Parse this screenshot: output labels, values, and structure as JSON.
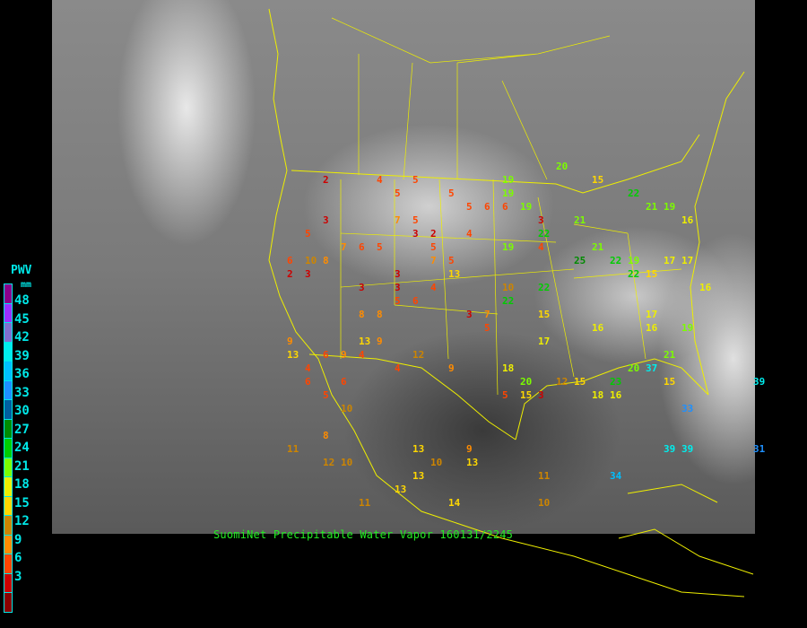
{
  "caption": "SuomiNet Precipitable Water Vapor 160131/2245",
  "legend": {
    "title": "PWV",
    "unit": "mm",
    "labels": [
      "48",
      "45",
      "42",
      "39",
      "36",
      "33",
      "30",
      "27",
      "24",
      "21",
      "18",
      "15",
      "12",
      "9",
      "6",
      "3"
    ],
    "colors": [
      "#8b008b",
      "#9b30ff",
      "#8070d0",
      "#00eeee",
      "#00bfff",
      "#1e90ff",
      "#005f9f",
      "#008b00",
      "#00cd00",
      "#7cfc00",
      "#eeee00",
      "#ffd700",
      "#cd8500",
      "#ff8c00",
      "#ff4500",
      "#cd0000",
      "#8b0000"
    ]
  },
  "stations": [
    "6",
    "5",
    "3",
    "4",
    "7",
    "4",
    "5",
    "5",
    "5",
    "4",
    "2",
    "3",
    "3",
    "3",
    "5",
    "4",
    "5",
    "7",
    "5",
    "6",
    "5",
    "6",
    "6",
    "3",
    "5",
    "5",
    "3",
    "5",
    "2",
    "3",
    "4",
    "4",
    "3",
    "8",
    "6",
    "5",
    "11",
    "7",
    "9",
    "9",
    "9",
    "11",
    "9",
    "9",
    "15",
    "13",
    "12",
    "16",
    "19",
    "16",
    "20",
    "10",
    "8",
    "10",
    "10",
    "6",
    "5",
    "3",
    "6",
    "7",
    "10",
    "13",
    "12",
    "11",
    "13",
    "15",
    "17",
    "13",
    "18",
    "19",
    "22",
    "22",
    "21",
    "23",
    "22",
    "20",
    "22",
    "19",
    "18",
    "17",
    "16",
    "15",
    "16",
    "13",
    "15",
    "16",
    "19",
    "21",
    "19",
    "22",
    "21",
    "22",
    "20",
    "12",
    "13",
    "15",
    "17",
    "19",
    "25",
    "31",
    "33",
    "39",
    "37",
    "34",
    "39",
    "39",
    "21",
    "4",
    "8",
    "2",
    "8",
    "15",
    "10",
    "10",
    "13",
    "17",
    "19",
    "14",
    "6"
  ],
  "station_colors": {
    "low": "#cd0000",
    "mid": "#ff8c00",
    "high": "#cd8500",
    "green": "#22dd22",
    "cyan": "#00bfff",
    "dark": "#8b0000"
  }
}
